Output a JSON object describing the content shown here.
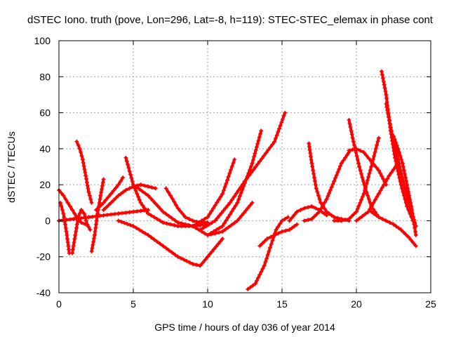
{
  "chart_data": {
    "type": "line",
    "title": "dSTEC Iono. truth (pove, Lon=296, Lat=-8, h=119): STEC-STEC_elemax in phase cont",
    "xlabel": "GPS time / hours of day 036 of year 2014",
    "ylabel": "dSTEC  / TECUs",
    "xlim": [
      0,
      25
    ],
    "ylim": [
      -40,
      100
    ],
    "xticks": [
      0,
      5,
      10,
      15,
      20,
      25
    ],
    "yticks": [
      -40,
      -20,
      0,
      20,
      40,
      60,
      80,
      100
    ],
    "grid": true,
    "legend": "none",
    "color": "#ff0000",
    "marker": "plus",
    "series": [
      {
        "x": [
          0.0,
          0.3,
          0.6,
          0.9,
          1.2,
          1.5,
          1.8
        ],
        "y": [
          17,
          14,
          10,
          6,
          2,
          -1,
          -2
        ]
      },
      {
        "x": [
          0.1,
          0.3,
          0.5,
          0.7
        ],
        "y": [
          10,
          4,
          -6,
          -18
        ]
      },
      {
        "x": [
          0.9,
          1.1,
          1.3,
          1.5,
          1.7,
          1.9,
          2.1
        ],
        "y": [
          -18,
          -8,
          2,
          6,
          4,
          -2,
          -5
        ]
      },
      {
        "x": [
          1.2,
          1.4,
          1.6,
          1.8,
          2.0,
          2.2
        ],
        "y": [
          44,
          40,
          34,
          25,
          16,
          10
        ]
      },
      {
        "x": [
          2.2,
          2.4,
          2.6,
          2.8,
          3.0
        ],
        "y": [
          -17,
          -8,
          4,
          14,
          23
        ]
      },
      {
        "x": [
          2.5,
          3.0,
          3.5,
          4.0,
          4.3
        ],
        "y": [
          6,
          10,
          15,
          20,
          24
        ]
      },
      {
        "x": [
          0.0,
          1.0,
          2.0,
          3.0,
          4.0,
          5.0,
          6.0
        ],
        "y": [
          0,
          1,
          2,
          3,
          4,
          5,
          6
        ]
      },
      {
        "x": [
          3.0,
          3.5,
          4.0,
          4.5,
          5.0,
          5.5,
          6.0,
          6.5
        ],
        "y": [
          6,
          10,
          14,
          17,
          19,
          20,
          19,
          18
        ]
      },
      {
        "x": [
          4.5,
          5.0,
          5.5,
          6.0,
          7.0,
          8.0,
          9.0,
          10.0,
          11.0,
          11.8
        ],
        "y": [
          35,
          20,
          10,
          4,
          -1,
          -3,
          -3,
          2,
          15,
          34
        ]
      },
      {
        "x": [
          4.0,
          5.0,
          6.0,
          7.0,
          8.0,
          9.0,
          9.5,
          10.0,
          11.0
        ],
        "y": [
          0,
          -3,
          -8,
          -14,
          -20,
          -24,
          -25,
          -20,
          -10
        ]
      },
      {
        "x": [
          5.0,
          6.0,
          7.0,
          8.0,
          9.0,
          10.0
        ],
        "y": [
          20,
          14,
          5,
          -1,
          -3,
          -2
        ]
      },
      {
        "x": [
          7.2,
          7.5,
          8.0,
          8.5,
          9.0,
          9.5,
          10.0
        ],
        "y": [
          18,
          14,
          7,
          2,
          0,
          -1,
          -1
        ]
      },
      {
        "x": [
          9.0,
          10.0,
          11.0,
          12.0,
          13.0,
          13.6
        ],
        "y": [
          -3,
          -8,
          -3,
          10,
          32,
          50
        ]
      },
      {
        "x": [
          10.0,
          11.0,
          12.0,
          13.0
        ],
        "y": [
          -8,
          -6,
          0,
          10
        ]
      },
      {
        "x": [
          9.5,
          10.5,
          11.5,
          12.5,
          13.5,
          14.5,
          15.2
        ],
        "y": [
          -5,
          0,
          10,
          22,
          33,
          44,
          60
        ]
      },
      {
        "x": [
          12.7,
          13.2,
          13.8,
          14.2,
          14.6,
          15.0,
          15.4
        ],
        "y": [
          -38,
          -35,
          -25,
          -15,
          -5,
          0,
          2
        ]
      },
      {
        "x": [
          13.5,
          14.0,
          14.5,
          15.0,
          15.5,
          16.0
        ],
        "y": [
          -14,
          -10,
          -8,
          -6,
          -5,
          -2
        ]
      },
      {
        "x": [
          15.5,
          16.0,
          16.5,
          17.0,
          17.5,
          18.0
        ],
        "y": [
          0,
          5,
          7,
          8,
          6,
          3
        ]
      },
      {
        "x": [
          16.8,
          17.0,
          17.3,
          17.6,
          18.0,
          18.5,
          19.0,
          19.5
        ],
        "y": [
          43,
          32,
          18,
          10,
          5,
          2,
          1,
          0
        ]
      },
      {
        "x": [
          16.5,
          17.0,
          17.5,
          18.0,
          18.5,
          19.0,
          19.5
        ],
        "y": [
          0,
          1,
          5,
          12,
          22,
          32,
          38
        ]
      },
      {
        "x": [
          19.5,
          20.0,
          20.5,
          21.0,
          21.5,
          22.0
        ],
        "y": [
          39,
          40,
          38,
          33,
          28,
          20
        ]
      },
      {
        "x": [
          19.5,
          19.8,
          20.2,
          20.6,
          21.0,
          21.5
        ],
        "y": [
          56,
          44,
          30,
          18,
          8,
          2
        ]
      },
      {
        "x": [
          18.5,
          19.0,
          19.5,
          20.0,
          20.5,
          21.0,
          21.5
        ],
        "y": [
          0,
          0,
          1,
          5,
          15,
          30,
          46
        ]
      },
      {
        "x": [
          21.7,
          22.0,
          22.3,
          22.6,
          23.0,
          23.4,
          23.8,
          24.0
        ],
        "y": [
          83,
          70,
          50,
          35,
          20,
          8,
          0,
          -3
        ]
      },
      {
        "x": [
          22.0,
          22.4,
          22.8,
          23.2,
          23.6,
          24.0
        ],
        "y": [
          65,
          48,
          34,
          20,
          8,
          -3
        ]
      },
      {
        "x": [
          22.5,
          22.8,
          23.1,
          23.4,
          23.7,
          24.0
        ],
        "y": [
          47,
          40,
          32,
          20,
          8,
          -8
        ]
      },
      {
        "x": [
          21.0,
          21.5,
          22.0,
          22.5,
          23.0,
          23.5,
          24.0
        ],
        "y": [
          5,
          2,
          0,
          -2,
          -5,
          -9,
          -14
        ]
      },
      {
        "x": [
          20.0,
          20.8,
          21.5,
          22.2,
          22.8
        ],
        "y": [
          0,
          5,
          15,
          25,
          32
        ]
      }
    ]
  }
}
